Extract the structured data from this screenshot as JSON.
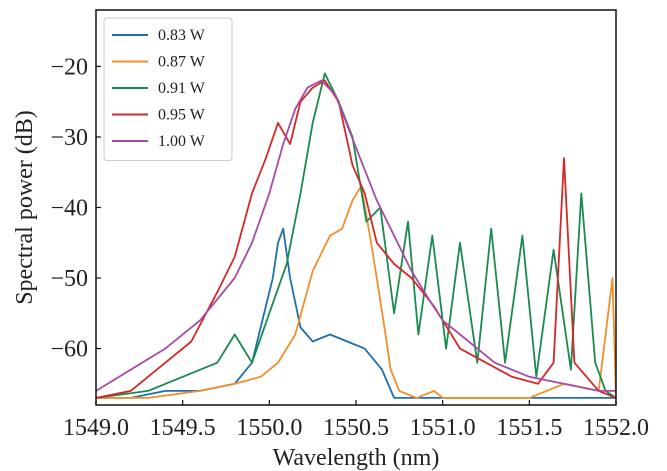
{
  "chart_data": {
    "type": "line",
    "xlabel": "Wavelength (nm)",
    "ylabel": "Spectral power (dB)",
    "xlim": [
      1549.0,
      1552.0
    ],
    "ylim": [
      -68,
      -12
    ],
    "xticks": [
      1549.0,
      1549.5,
      1550.0,
      1550.5,
      1551.0,
      1551.5,
      1552.0
    ],
    "xtick_labels": [
      "1549.0",
      "1549.5",
      "1550.0",
      "1550.5",
      "1551.0",
      "1551.5",
      "1552.0"
    ],
    "yticks": [
      -60,
      -50,
      -40,
      -30,
      -20
    ],
    "ytick_labels": [
      "−60",
      "−50",
      "−40",
      "−30",
      "−20"
    ],
    "grid": false,
    "legend_position": "top-left",
    "series": [
      {
        "name": "0.83 W",
        "color": "#1f6fae",
        "points": [
          [
            1549.0,
            -67
          ],
          [
            1549.2,
            -67
          ],
          [
            1549.4,
            -66
          ],
          [
            1549.6,
            -66
          ],
          [
            1549.8,
            -65
          ],
          [
            1549.9,
            -62
          ],
          [
            1549.96,
            -56
          ],
          [
            1550.02,
            -50
          ],
          [
            1550.05,
            -45
          ],
          [
            1550.08,
            -43
          ],
          [
            1550.12,
            -50
          ],
          [
            1550.18,
            -57
          ],
          [
            1550.25,
            -59
          ],
          [
            1550.35,
            -58
          ],
          [
            1550.45,
            -59
          ],
          [
            1550.55,
            -60
          ],
          [
            1550.65,
            -63
          ],
          [
            1550.72,
            -67
          ],
          [
            1550.85,
            -67
          ],
          [
            1551.0,
            -67
          ],
          [
            1551.5,
            -67
          ],
          [
            1552.0,
            -67
          ]
        ]
      },
      {
        "name": "0.87 W",
        "color": "#f28e2b",
        "points": [
          [
            1549.0,
            -67
          ],
          [
            1549.3,
            -67
          ],
          [
            1549.6,
            -66
          ],
          [
            1549.8,
            -65
          ],
          [
            1549.95,
            -64
          ],
          [
            1550.05,
            -62
          ],
          [
            1550.15,
            -58
          ],
          [
            1550.25,
            -49
          ],
          [
            1550.35,
            -44
          ],
          [
            1550.42,
            -43
          ],
          [
            1550.48,
            -39
          ],
          [
            1550.53,
            -37
          ],
          [
            1550.58,
            -44
          ],
          [
            1550.62,
            -50
          ],
          [
            1550.67,
            -58
          ],
          [
            1550.7,
            -63
          ],
          [
            1550.75,
            -66
          ],
          [
            1550.85,
            -67
          ],
          [
            1550.95,
            -66
          ],
          [
            1551.0,
            -67
          ],
          [
            1551.5,
            -67
          ],
          [
            1551.7,
            -65
          ],
          [
            1551.9,
            -66
          ],
          [
            1551.98,
            -50
          ],
          [
            1552.0,
            -67
          ]
        ]
      },
      {
        "name": "0.91 W",
        "color": "#1a8a4e",
        "points": [
          [
            1549.0,
            -67
          ],
          [
            1549.3,
            -66
          ],
          [
            1549.5,
            -64
          ],
          [
            1549.7,
            -62
          ],
          [
            1549.8,
            -58
          ],
          [
            1549.9,
            -62
          ],
          [
            1550.0,
            -55
          ],
          [
            1550.1,
            -48
          ],
          [
            1550.18,
            -38
          ],
          [
            1550.25,
            -28
          ],
          [
            1550.32,
            -21
          ],
          [
            1550.4,
            -25
          ],
          [
            1550.48,
            -30
          ],
          [
            1550.56,
            -42
          ],
          [
            1550.64,
            -40
          ],
          [
            1550.72,
            -55
          ],
          [
            1550.8,
            -42
          ],
          [
            1550.86,
            -58
          ],
          [
            1550.94,
            -44
          ],
          [
            1551.02,
            -60
          ],
          [
            1551.1,
            -45
          ],
          [
            1551.2,
            -62
          ],
          [
            1551.28,
            -43
          ],
          [
            1551.36,
            -62
          ],
          [
            1551.46,
            -44
          ],
          [
            1551.54,
            -64
          ],
          [
            1551.64,
            -46
          ],
          [
            1551.74,
            -63
          ],
          [
            1551.8,
            -38
          ],
          [
            1551.88,
            -62
          ],
          [
            1551.94,
            -66
          ],
          [
            1552.0,
            -67
          ]
        ]
      },
      {
        "name": "0.95 W",
        "color": "#d62728",
        "points": [
          [
            1549.0,
            -67
          ],
          [
            1549.2,
            -66
          ],
          [
            1549.4,
            -62
          ],
          [
            1549.55,
            -59
          ],
          [
            1549.7,
            -52
          ],
          [
            1549.8,
            -47
          ],
          [
            1549.9,
            -38
          ],
          [
            1549.98,
            -33
          ],
          [
            1550.05,
            -28
          ],
          [
            1550.12,
            -31
          ],
          [
            1550.18,
            -25
          ],
          [
            1550.25,
            -23
          ],
          [
            1550.32,
            -22
          ],
          [
            1550.4,
            -25
          ],
          [
            1550.48,
            -34
          ],
          [
            1550.55,
            -38
          ],
          [
            1550.62,
            -45
          ],
          [
            1550.72,
            -48
          ],
          [
            1550.82,
            -50
          ],
          [
            1550.95,
            -54
          ],
          [
            1551.1,
            -60
          ],
          [
            1551.25,
            -62
          ],
          [
            1551.4,
            -64
          ],
          [
            1551.55,
            -65
          ],
          [
            1551.64,
            -62
          ],
          [
            1551.7,
            -33
          ],
          [
            1551.76,
            -62
          ],
          [
            1551.9,
            -66
          ],
          [
            1552.0,
            -67
          ]
        ]
      },
      {
        "name": "1.00 W",
        "color": "#a64ca6",
        "points": [
          [
            1549.0,
            -66
          ],
          [
            1549.2,
            -63
          ],
          [
            1549.4,
            -60
          ],
          [
            1549.6,
            -56
          ],
          [
            1549.8,
            -50
          ],
          [
            1549.9,
            -45
          ],
          [
            1550.0,
            -38
          ],
          [
            1550.08,
            -31
          ],
          [
            1550.15,
            -26
          ],
          [
            1550.22,
            -23
          ],
          [
            1550.3,
            -22
          ],
          [
            1550.38,
            -24
          ],
          [
            1550.46,
            -29
          ],
          [
            1550.54,
            -34
          ],
          [
            1550.62,
            -39
          ],
          [
            1550.72,
            -44
          ],
          [
            1550.82,
            -49
          ],
          [
            1550.92,
            -53
          ],
          [
            1551.0,
            -56
          ],
          [
            1551.15,
            -59
          ],
          [
            1551.3,
            -62
          ],
          [
            1551.5,
            -64
          ],
          [
            1551.7,
            -65
          ],
          [
            1551.9,
            -66
          ],
          [
            1552.0,
            -66
          ]
        ]
      }
    ]
  }
}
